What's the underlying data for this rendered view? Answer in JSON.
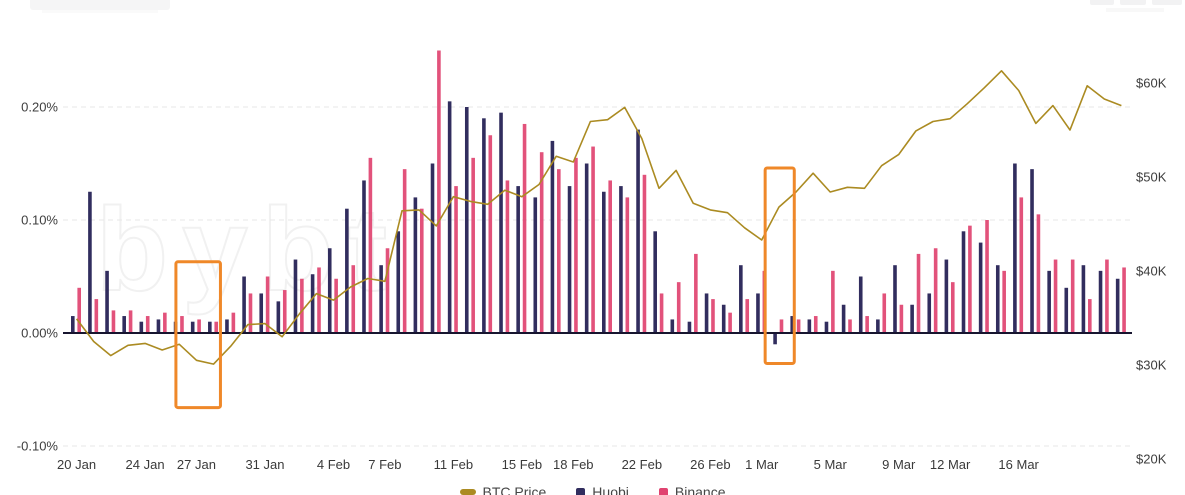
{
  "watermark": "bybt",
  "legend": {
    "items": [
      {
        "label": "BTC Price",
        "color": "#ab8b22",
        "marker": "line"
      },
      {
        "label": "Huobi",
        "color": "#312d5e",
        "marker": "bar"
      },
      {
        "label": "Binance",
        "color": "#e04370",
        "marker": "bar"
      }
    ]
  },
  "chart_data": {
    "type": "combo",
    "title": "",
    "grid": true,
    "legend_position": "bottom",
    "categories": [
      "20 Jan",
      "21 Jan",
      "22 Jan",
      "23 Jan",
      "24 Jan",
      "25 Jan",
      "26 Jan",
      "27 Jan",
      "28 Jan",
      "29 Jan",
      "30 Jan",
      "31 Jan",
      "1 Feb",
      "2 Feb",
      "3 Feb",
      "4 Feb",
      "5 Feb",
      "6 Feb",
      "7 Feb",
      "8 Feb",
      "9 Feb",
      "10 Feb",
      "11 Feb",
      "12 Feb",
      "13 Feb",
      "14 Feb",
      "15 Feb",
      "16 Feb",
      "17 Feb",
      "18 Feb",
      "19 Feb",
      "20 Feb",
      "21 Feb",
      "22 Feb",
      "23 Feb",
      "24 Feb",
      "25 Feb",
      "26 Feb",
      "27 Feb",
      "28 Feb",
      "1 Mar",
      "2 Mar",
      "3 Mar",
      "4 Mar",
      "5 Mar",
      "6 Mar",
      "7 Mar",
      "8 Mar",
      "9 Mar",
      "10 Mar",
      "11 Mar",
      "12 Mar",
      "13 Mar",
      "14 Mar",
      "15 Mar",
      "16 Mar",
      "17 Mar",
      "18 Mar",
      "19 Mar",
      "20 Mar",
      "21 Mar",
      "22 Mar"
    ],
    "series": [
      {
        "name": "Huobi",
        "type": "bar",
        "axis": "left",
        "unit": "%",
        "color": "#312d5e",
        "values": [
          0.015,
          0.125,
          0.055,
          0.015,
          0.01,
          0.012,
          0.01,
          0.01,
          0.01,
          0.012,
          0.05,
          0.035,
          0.028,
          0.065,
          0.052,
          0.075,
          0.11,
          0.135,
          0.06,
          0.09,
          0.12,
          0.15,
          0.205,
          0.2,
          0.19,
          0.195,
          0.13,
          0.12,
          0.17,
          0.13,
          0.15,
          0.125,
          0.13,
          0.18,
          0.09,
          0.012,
          0.01,
          0.035,
          0.025,
          0.06,
          0.035,
          -0.01,
          0.015,
          0.012,
          0.01,
          0.025,
          0.05,
          0.012,
          0.06,
          0.025,
          0.035,
          0.065,
          0.09,
          0.08,
          0.06,
          0.15,
          0.145,
          0.055,
          0.04,
          0.06,
          0.055,
          0.048
        ]
      },
      {
        "name": "Binance",
        "type": "bar",
        "axis": "left",
        "unit": "%",
        "color": "#e04370",
        "values": [
          0.04,
          0.03,
          0.02,
          0.02,
          0.015,
          0.018,
          0.015,
          0.012,
          0.01,
          0.018,
          0.035,
          0.05,
          0.038,
          0.048,
          0.058,
          0.048,
          0.06,
          0.155,
          0.075,
          0.145,
          0.11,
          0.25,
          0.13,
          0.155,
          0.175,
          0.135,
          0.185,
          0.16,
          0.145,
          0.155,
          0.165,
          0.135,
          0.12,
          0.14,
          0.035,
          0.045,
          0.07,
          0.03,
          0.018,
          0.03,
          0.055,
          0.012,
          0.012,
          0.015,
          0.055,
          0.012,
          0.015,
          0.035,
          0.025,
          0.07,
          0.075,
          0.045,
          0.095,
          0.1,
          0.055,
          0.12,
          0.105,
          0.065,
          0.065,
          0.03,
          0.065,
          0.058
        ]
      },
      {
        "name": "BTC Price",
        "type": "line",
        "axis": "right",
        "unit": "$K",
        "color": "#ab8b22",
        "values": [
          34.9,
          32.5,
          31.0,
          32.1,
          32.3,
          31.6,
          32.2,
          30.5,
          30.1,
          32.0,
          34.3,
          34.4,
          33.0,
          35.4,
          37.6,
          36.9,
          38.3,
          39.2,
          38.9,
          46.4,
          46.5,
          44.8,
          47.9,
          47.4,
          47.1,
          48.6,
          47.9,
          49.2,
          52.2,
          51.6,
          55.9,
          56.1,
          57.4,
          54.1,
          48.8,
          50.7,
          47.2,
          46.5,
          46.2,
          44.6,
          43.3,
          46.8,
          48.4,
          50.4,
          48.4,
          48.9,
          48.8,
          51.2,
          52.4,
          54.9,
          55.9,
          56.2,
          57.8,
          59.5,
          61.3,
          59.2,
          55.7,
          57.6,
          55.0,
          59.7,
          58.3,
          57.6
        ]
      }
    ],
    "left_axis": {
      "unit": "%",
      "range": [
        -0.1,
        0.25
      ],
      "ticks": [
        {
          "label": "0.20%",
          "value": 0.2
        },
        {
          "label": "0.10%",
          "value": 0.1
        },
        {
          "label": "0.00%",
          "value": 0.0
        },
        {
          "label": "-0.10%",
          "value": -0.1
        }
      ],
      "gridline_values": [
        0.2,
        0.1,
        -0.1
      ]
    },
    "right_axis": {
      "unit": "$K",
      "range": [
        20,
        62
      ],
      "ticks": [
        {
          "label": "$60K",
          "value": 60
        },
        {
          "label": "$50K",
          "value": 50
        },
        {
          "label": "$40K",
          "value": 40
        },
        {
          "label": "$30K",
          "value": 30
        },
        {
          "label": "$20K",
          "value": 20
        }
      ]
    },
    "x_axis": {
      "tick_indices": [
        0,
        4,
        7,
        11,
        15,
        18,
        22,
        26,
        29,
        33,
        37,
        40,
        44,
        48,
        51,
        55
      ],
      "tick_labels": [
        "20 Jan",
        "24 Jan",
        "27 Jan",
        "31 Jan",
        "4 Feb",
        "7 Feb",
        "11 Feb",
        "15 Feb",
        "18 Feb",
        "22 Feb",
        "26 Feb",
        "1 Mar",
        "5 Mar",
        "9 Mar",
        "12 Mar",
        "16 Mar"
      ]
    },
    "highlight_boxes": [
      {
        "day_start": 6.3,
        "day_end": 8.9,
        "value_top": 0.063,
        "value_bottom": -0.066,
        "color": "#ef8829"
      },
      {
        "day_start": 40.7,
        "day_end": 42.4,
        "value_top": 0.146,
        "value_bottom": -0.027,
        "color": "#ef8829"
      }
    ]
  }
}
